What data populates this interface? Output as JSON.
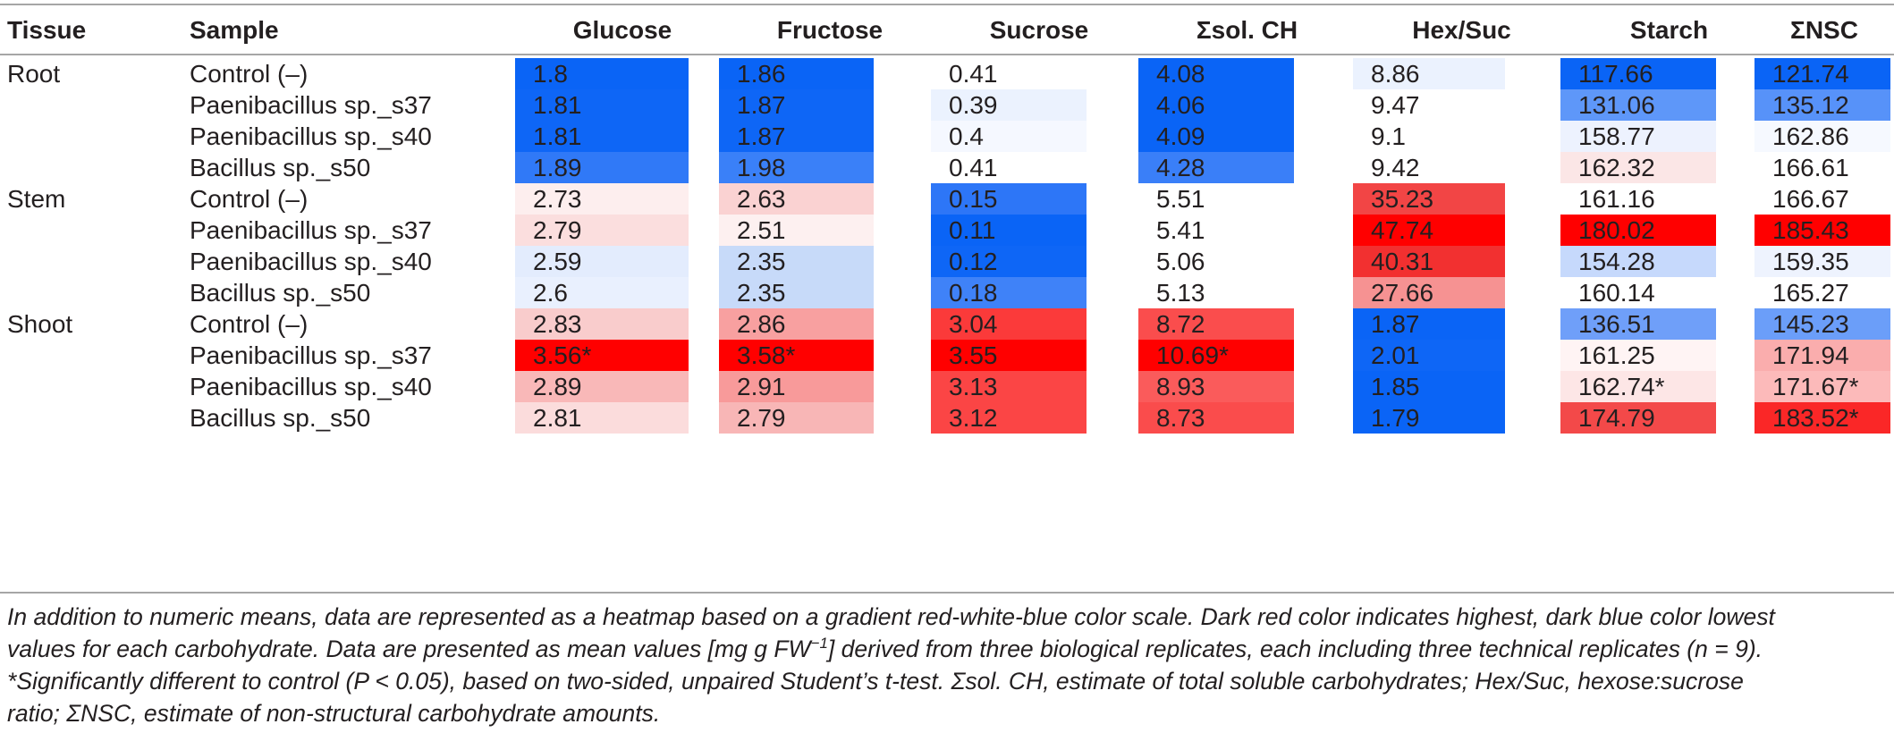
{
  "headers": [
    "Tissue",
    "Sample",
    "Glucose",
    "Fructose",
    "Sucrose",
    "Σsol. CH",
    "Hex/Suc",
    "Starch",
    "ΣNSC"
  ],
  "rows": [
    {
      "tissue": "Root",
      "sample": "Control (–)",
      "values": [
        "1.8",
        "1.86",
        "0.41",
        "4.08",
        "8.86",
        "117.66",
        "121.74"
      ],
      "colors": [
        "#0a64f6",
        "#0a64f6",
        "#ffffff",
        "#0a64f6",
        "#ebf2fe",
        "#0a64f6",
        "#0a64f6"
      ]
    },
    {
      "tissue": "",
      "sample": "Paenibacillus sp._s37",
      "values": [
        "1.81",
        "1.87",
        "0.39",
        "4.06",
        "9.47",
        "131.06",
        "135.12"
      ],
      "colors": [
        "#0e66f6",
        "#0e66f6",
        "#ebf2fe",
        "#0a64f6",
        "#ffffff",
        "#5e97f9",
        "#5792f9"
      ]
    },
    {
      "tissue": "",
      "sample": "Paenibacillus sp._s40",
      "values": [
        "1.81",
        "1.87",
        "0.4",
        "4.09",
        "9.1",
        "158.77",
        "162.86"
      ],
      "colors": [
        "#0e66f6",
        "#0e66f6",
        "#f5f8ff",
        "#0a64f6",
        "#ffffff",
        "#edf2fe",
        "#f6f9ff"
      ]
    },
    {
      "tissue": "",
      "sample": "Bacillus sp._s50",
      "values": [
        "1.89",
        "1.98",
        "0.41",
        "4.28",
        "9.42",
        "162.32",
        "166.61"
      ],
      "colors": [
        "#3079f7",
        "#3a80f8",
        "#ffffff",
        "#3a7ff8",
        "#ffffff",
        "#fbe6e6",
        "#ffffff"
      ]
    },
    {
      "tissue": "Stem",
      "sample": "Control (–)",
      "values": [
        "2.73",
        "2.63",
        "0.15",
        "5.51",
        "35.23",
        "161.16",
        "166.67"
      ],
      "colors": [
        "#fdeeee",
        "#fad2d2",
        "#2d76f7",
        "#ffffff",
        "#f24545",
        "#ffffff",
        "#ffffff"
      ]
    },
    {
      "tissue": "",
      "sample": "Paenibacillus sp._s37",
      "values": [
        "2.79",
        "2.51",
        "0.11",
        "5.41",
        "47.74",
        "180.02",
        "185.43"
      ],
      "colors": [
        "#fbdede",
        "#fdf0f0",
        "#0a64f6",
        "#ffffff",
        "#ff0000",
        "#ff0000",
        "#ff0000"
      ]
    },
    {
      "tissue": "",
      "sample": "Paenibacillus sp._s40",
      "values": [
        "2.59",
        "2.35",
        "0.12",
        "5.06",
        "40.31",
        "154.28",
        "159.35"
      ],
      "colors": [
        "#e3ecfd",
        "#c7daf9",
        "#0e66f6",
        "#ffffff",
        "#f23030",
        "#c6d9fc",
        "#eef3fe"
      ]
    },
    {
      "tissue": "",
      "sample": "Bacillus sp._s50",
      "values": [
        "2.6",
        "2.35",
        "0.18",
        "5.13",
        "27.66",
        "160.14",
        "165.27"
      ],
      "colors": [
        "#e9f0fe",
        "#c7daf9",
        "#3f82f8",
        "#ffffff",
        "#f69292",
        "#ffffff",
        "#ffffff"
      ]
    },
    {
      "tissue": "Shoot",
      "sample": "Control (–)",
      "values": [
        "2.83",
        "2.86",
        "3.04",
        "8.72",
        "1.87",
        "136.51",
        "145.23"
      ],
      "colors": [
        "#f9cccc",
        "#f8a0a0",
        "#fb3a3a",
        "#fa4d4d",
        "#0a64f6",
        "#6f9ff9",
        "#6b9ef9"
      ]
    },
    {
      "tissue": "",
      "sample": "Paenibacillus sp._s37",
      "values": [
        "3.56*",
        "3.58*",
        "3.55",
        "10.69*",
        "2.01",
        "161.25",
        "171.94"
      ],
      "colors": [
        "#ff0000",
        "#ff0000",
        "#ff0000",
        "#ff0000",
        "#0e66f6",
        "#fff4f4",
        "#faadad"
      ]
    },
    {
      "tissue": "",
      "sample": "Paenibacillus sp._s40",
      "values": [
        "2.89",
        "2.91",
        "3.13",
        "8.93",
        "1.85",
        "162.74*",
        "171.67*"
      ],
      "colors": [
        "#f9b8b8",
        "#f89a9a",
        "#fb4545",
        "#fa5b5b",
        "#0a64f6",
        "#fde6e6",
        "#fcbaba"
      ]
    },
    {
      "tissue": "",
      "sample": "Bacillus sp._s50",
      "values": [
        "2.81",
        "2.79",
        "3.12",
        "8.73",
        "1.79",
        "174.79",
        "183.52*"
      ],
      "colors": [
        "#fbdcdc",
        "#f8b6b6",
        "#fb4545",
        "#fa4c4c",
        "#0a64f6",
        "#f34949",
        "#fa2727"
      ]
    }
  ],
  "caption": {
    "line1": "In addition to numeric means, data are represented as a heatmap based on a gradient red-white-blue color scale. Dark red color indicates highest, dark blue color lowest",
    "line2_pre": "values for each carbohydrate. Data are presented as mean values [mg g FW",
    "line2_sup": "−1",
    "line2_post": "] derived from three biological replicates, each including three technical replicates (n = 9).",
    "line3": "*Significantly different to control (P < 0.05), based on two-sided, unpaired Student’s t-test. Σsol. CH, estimate of total soluble carbohydrates; Hex/Suc, hexose:sucrose",
    "line4": "ratio; ΣNSC, estimate of non-structural carbohydrate amounts."
  }
}
